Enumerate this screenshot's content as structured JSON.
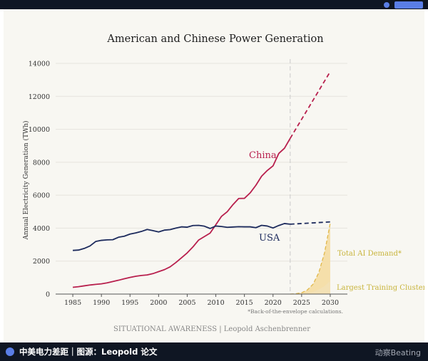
{
  "banner": {
    "caption": "中美电力差距｜图源：Leopold 论文",
    "brand": "动察Beating"
  },
  "chart_data": {
    "type": "line",
    "title": "American and Chinese Power Generation",
    "xlabel": "",
    "ylabel": "Annual Electricity Generation (TWh)",
    "xlim": [
      1982,
      2033
    ],
    "ylim": [
      0,
      14000
    ],
    "x_ticks": [
      1985,
      1990,
      1995,
      2000,
      2005,
      2010,
      2015,
      2020,
      2025,
      2030
    ],
    "y_ticks": [
      0,
      2000,
      4000,
      6000,
      8000,
      10000,
      12000,
      14000
    ],
    "grid": "horizontal",
    "projection_start": 2023,
    "series": [
      {
        "name": "China",
        "color": "#b81f4d",
        "style": "solid",
        "x": [
          1985,
          1986,
          1987,
          1988,
          1989,
          1990,
          1991,
          1992,
          1993,
          1994,
          1995,
          1996,
          1997,
          1998,
          1999,
          2000,
          2001,
          2002,
          2003,
          2004,
          2005,
          2006,
          2007,
          2008,
          2009,
          2010,
          2011,
          2012,
          2013,
          2014,
          2015,
          2016,
          2017,
          2018,
          2019,
          2020,
          2021,
          2022,
          2023
        ],
        "values": [
          410,
          450,
          500,
          550,
          590,
          620,
          680,
          760,
          840,
          930,
          1010,
          1080,
          1130,
          1160,
          1240,
          1360,
          1480,
          1650,
          1910,
          2200,
          2500,
          2860,
          3280,
          3490,
          3700,
          4210,
          4720,
          5000,
          5430,
          5800,
          5810,
          6140,
          6600,
          7150,
          7500,
          7780,
          8530,
          8850,
          9450
        ]
      },
      {
        "name": "China projection",
        "color": "#b81f4d",
        "style": "dashed",
        "x": [
          2023,
          2030
        ],
        "values": [
          9450,
          13500
        ]
      },
      {
        "name": "USA",
        "color": "#1c2a5c",
        "style": "solid",
        "x": [
          1985,
          1986,
          1987,
          1988,
          1989,
          1990,
          1991,
          1992,
          1993,
          1994,
          1995,
          1996,
          1997,
          1998,
          1999,
          2000,
          2001,
          2002,
          2003,
          2004,
          2005,
          2006,
          2007,
          2008,
          2009,
          2010,
          2011,
          2012,
          2013,
          2014,
          2015,
          2016,
          2017,
          2018,
          2019,
          2020,
          2021,
          2022,
          2023
        ],
        "values": [
          2650,
          2670,
          2770,
          2920,
          3190,
          3260,
          3290,
          3300,
          3450,
          3510,
          3640,
          3710,
          3800,
          3920,
          3850,
          3770,
          3880,
          3910,
          4000,
          4080,
          4060,
          4160,
          4170,
          4120,
          3980,
          4130,
          4100,
          4050,
          4070,
          4090,
          4080,
          4080,
          4030,
          4170,
          4130,
          4010,
          4160,
          4280,
          4240
        ]
      },
      {
        "name": "USA projection",
        "color": "#1c2a5c",
        "style": "dashed",
        "x": [
          2023,
          2030
        ],
        "values": [
          4240,
          4380
        ]
      },
      {
        "name": "Total AI Demand*",
        "color": "#e0b84a",
        "style": "dashed",
        "fill": "#f4dca2",
        "x": [
          2023,
          2024,
          2025,
          2026,
          2027,
          2028,
          2029,
          2030
        ],
        "values": [
          0,
          20,
          80,
          250,
          600,
          1300,
          2500,
          4300
        ]
      },
      {
        "name": "Largest Training Cluster*",
        "color": "#f3e1b6",
        "style": "area",
        "fill": "#f3e1b6",
        "x": [
          2023,
          2024,
          2025,
          2026,
          2027,
          2028,
          2029,
          2030
        ],
        "values": [
          0,
          5,
          20,
          60,
          140,
          280,
          480,
          800
        ]
      }
    ],
    "annotations": {
      "china_label": "China",
      "usa_label": "USA",
      "total_ai_label": "Total AI Demand*",
      "cluster_label": "Largest Training Cluster*",
      "footnote": "*Back-of-the-envelope calculations.",
      "credit": "SITUATIONAL AWARENESS | Leopold Aschenbrenner"
    }
  }
}
